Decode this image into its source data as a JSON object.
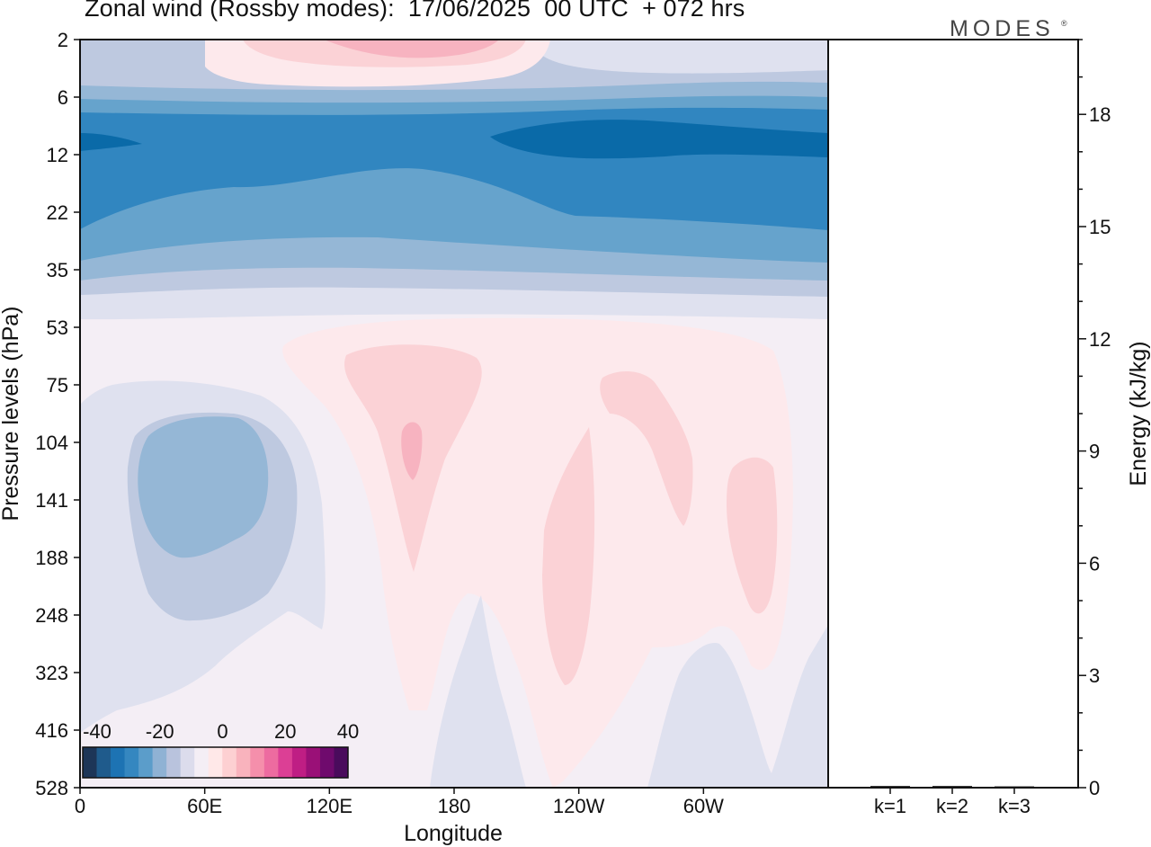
{
  "chart_data": [
    {
      "type": "heatmap",
      "title": "Zonal wind (Rossby modes):  17/06/2025  00 UTC  + 072 hrs",
      "xlabel": "Longitude",
      "ylabel": "Pressure levels (hPa)",
      "x_ticks": [
        "0",
        "60E",
        "120E",
        "180",
        "120W",
        "60W"
      ],
      "x_tick_degrees": [
        0,
        60,
        120,
        180,
        240,
        300
      ],
      "xlim": [
        0,
        360
      ],
      "y_ticks": [
        "2",
        "6",
        "12",
        "22",
        "35",
        "53",
        "75",
        "104",
        "141",
        "188",
        "248",
        "323",
        "416",
        "528"
      ],
      "colorbar": {
        "tick_labels": [
          "-40",
          "-20",
          "0",
          "20",
          "40"
        ],
        "range": [
          -40,
          40
        ],
        "colors": [
          "#1d3557",
          "#1f5b8c",
          "#1d73b3",
          "#3587c0",
          "#5b9dca",
          "#8fb2d4",
          "#b9c3dd",
          "#dcdcec",
          "#f4eef5",
          "#ffe8e8",
          "#fdd0d2",
          "#f9b3bd",
          "#f58fab",
          "#ed6ba0",
          "#dc3f95",
          "#bf1e84",
          "#9a1077",
          "#6f0a6d",
          "#4a0b5c"
        ]
      },
      "fill_colors": [
        "#0a6aa8",
        "#3186c0",
        "#66a3cc",
        "#95b7d6",
        "#bec9e0",
        "#dfe1ef",
        "#f4eef5",
        "#fde9ec",
        "#fbd2d6",
        "#f7b3c0"
      ]
    },
    {
      "type": "bar",
      "categories": [
        "k=1",
        "k=2",
        "k=3"
      ],
      "values": [
        0.02,
        0.02,
        0.01
      ],
      "ylabel": "Energy (kJ/kg)",
      "ylim": [
        0,
        20
      ],
      "y_ticks": [
        "0",
        "3",
        "6",
        "9",
        "12",
        "15",
        "18"
      ]
    }
  ],
  "brand": {
    "name": "MODES",
    "mark": "®"
  }
}
